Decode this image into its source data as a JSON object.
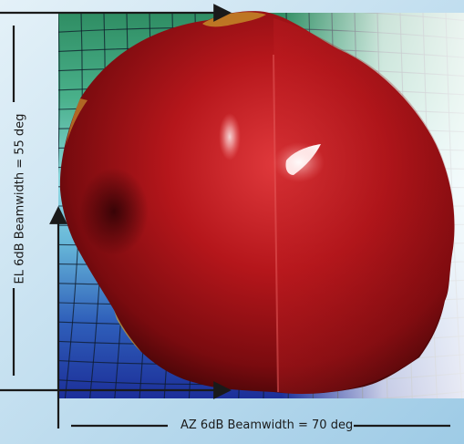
{
  "figure": {
    "az_label": "AZ 6dB Beamwidth = 70 deg",
    "el_label": "EL 6dB Beamwidth = 55 deg"
  },
  "colors": {
    "background": "#c6e0ef",
    "lobe_main": "#b5161b",
    "lobe_dark": "#5a0709",
    "lobe_highlight": "#ff8a8a",
    "grid_top": "#2f8d63",
    "grid_mid": "#7fd3e0",
    "grid_bottom": "#1c2f99",
    "axis_line": "#1a1a1a"
  }
}
